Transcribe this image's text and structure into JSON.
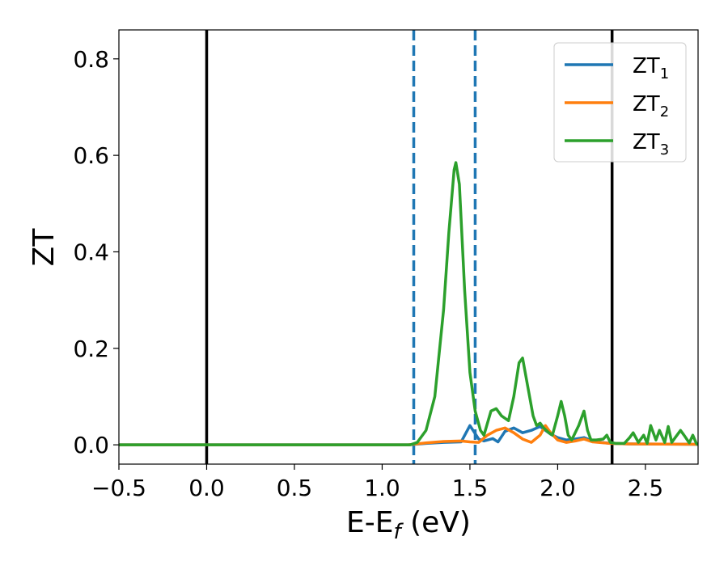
{
  "chart_data": {
    "type": "line",
    "xlabel_main": "E-E",
    "xlabel_sub": "f",
    "xlabel_tail": " (eV)",
    "ylabel": "ZT",
    "xlim": [
      -0.5,
      2.8
    ],
    "ylim": [
      -0.04,
      0.86
    ],
    "x_ticks": [
      -0.5,
      0.0,
      0.5,
      1.0,
      1.5,
      2.0,
      2.5
    ],
    "x_tick_labels": [
      "−0.5",
      "0.0",
      "0.5",
      "1.0",
      "1.5",
      "2.0",
      "2.5"
    ],
    "y_ticks": [
      0.0,
      0.2,
      0.4,
      0.6,
      0.8
    ],
    "y_tick_labels": [
      "0.0",
      "0.2",
      "0.4",
      "0.6",
      "0.8"
    ],
    "grid": false,
    "legend_position": "top-right",
    "vlines": [
      {
        "x": 0.0,
        "style": "solid",
        "color": "#000000"
      },
      {
        "x": 2.31,
        "style": "solid",
        "color": "#000000"
      },
      {
        "x": 1.18,
        "style": "dashed",
        "color": "#1f77b4"
      },
      {
        "x": 1.53,
        "style": "dashed",
        "color": "#1f77b4"
      }
    ],
    "series": [
      {
        "name": "ZT",
        "sub": "1",
        "color": "#1f77b4",
        "x": [
          -0.5,
          1.15,
          1.25,
          1.35,
          1.45,
          1.5,
          1.55,
          1.58,
          1.6,
          1.63,
          1.66,
          1.7,
          1.75,
          1.8,
          1.85,
          1.9,
          1.93,
          1.96,
          2.0,
          2.05,
          2.1,
          2.15,
          2.2,
          2.25,
          2.3,
          2.4,
          2.8
        ],
        "y": [
          0.0,
          0.0,
          0.003,
          0.005,
          0.006,
          0.04,
          0.012,
          0.008,
          0.01,
          0.013,
          0.006,
          0.028,
          0.035,
          0.025,
          0.03,
          0.038,
          0.03,
          0.022,
          0.015,
          0.01,
          0.012,
          0.015,
          0.008,
          0.005,
          0.003,
          0.002,
          0.001
        ]
      },
      {
        "name": "ZT",
        "sub": "2",
        "color": "#ff7f0e",
        "x": [
          -0.5,
          1.15,
          1.25,
          1.35,
          1.45,
          1.5,
          1.55,
          1.6,
          1.65,
          1.7,
          1.75,
          1.8,
          1.85,
          1.9,
          1.93,
          1.96,
          2.0,
          2.05,
          2.1,
          2.15,
          2.2,
          2.3,
          2.4,
          2.8
        ],
        "y": [
          0.0,
          0.0,
          0.004,
          0.007,
          0.008,
          0.006,
          0.005,
          0.02,
          0.03,
          0.035,
          0.025,
          0.012,
          0.005,
          0.02,
          0.04,
          0.025,
          0.01,
          0.005,
          0.008,
          0.012,
          0.006,
          0.003,
          0.002,
          0.001
        ]
      },
      {
        "name": "ZT",
        "sub": "3",
        "color": "#2ca02c",
        "x": [
          -0.5,
          1.16,
          1.2,
          1.25,
          1.3,
          1.35,
          1.38,
          1.41,
          1.42,
          1.44,
          1.47,
          1.5,
          1.53,
          1.56,
          1.58,
          1.6,
          1.62,
          1.65,
          1.68,
          1.72,
          1.75,
          1.78,
          1.8,
          1.83,
          1.86,
          1.88,
          1.9,
          1.92,
          1.95,
          1.97,
          2.0,
          2.02,
          2.04,
          2.06,
          2.08,
          2.12,
          2.15,
          2.17,
          2.19,
          2.22,
          2.26,
          2.28,
          2.3,
          2.33,
          2.38,
          2.41,
          2.43,
          2.46,
          2.49,
          2.51,
          2.53,
          2.56,
          2.58,
          2.61,
          2.63,
          2.65,
          2.68,
          2.7,
          2.72,
          2.75,
          2.77,
          2.79,
          2.8
        ],
        "y": [
          0.0,
          0.0,
          0.005,
          0.03,
          0.1,
          0.28,
          0.44,
          0.57,
          0.585,
          0.54,
          0.32,
          0.15,
          0.07,
          0.03,
          0.02,
          0.045,
          0.07,
          0.075,
          0.06,
          0.05,
          0.1,
          0.17,
          0.18,
          0.12,
          0.06,
          0.04,
          0.045,
          0.035,
          0.025,
          0.02,
          0.06,
          0.09,
          0.06,
          0.02,
          0.01,
          0.04,
          0.07,
          0.03,
          0.01,
          0.01,
          0.012,
          0.02,
          0.005,
          0.003,
          0.003,
          0.015,
          0.025,
          0.005,
          0.02,
          0.003,
          0.04,
          0.01,
          0.03,
          0.005,
          0.038,
          0.005,
          0.02,
          0.03,
          0.02,
          0.004,
          0.02,
          0.003,
          0.0
        ]
      }
    ]
  }
}
